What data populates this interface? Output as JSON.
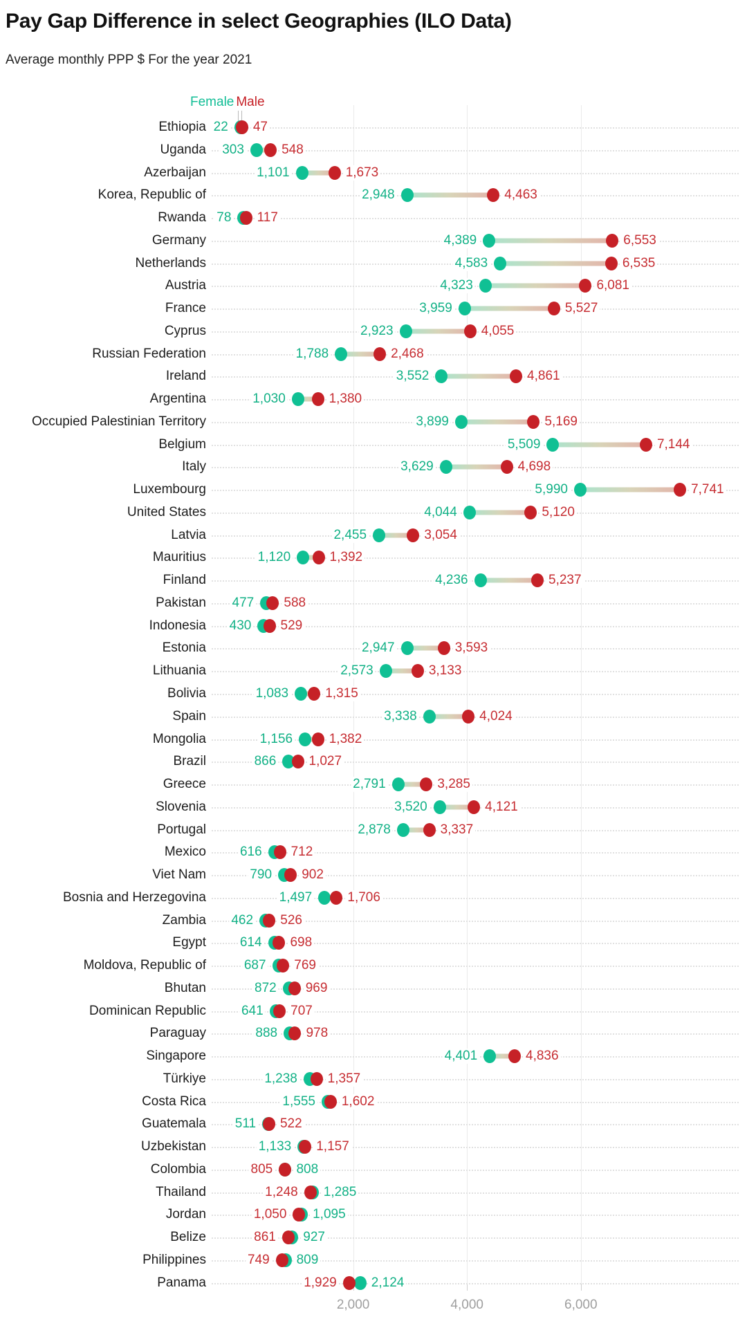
{
  "chart_data": {
    "type": "scatter",
    "variant": "dumbbell",
    "title": "Pay Gap Difference in select Geographies (ILO Data)",
    "subtitle": "Average monthly PPP $ For the year 2021",
    "legend": {
      "female_label": "Female",
      "male_label": "Male"
    },
    "colors": {
      "female": "#12be96",
      "male": "#c62127",
      "connector_female_end": "#aae4cd",
      "connector_male_end": "#e3b4aa",
      "gridline": "#ebebeb",
      "axis_text": "#9e9e9e"
    },
    "x_axis": {
      "ticks": [
        2000,
        4000,
        6000
      ],
      "tick_labels": [
        "2,000",
        "4,000",
        "6,000"
      ],
      "range": [
        0,
        8800
      ],
      "grid": true
    },
    "legend_position": "top-left-of-first-row",
    "rows": [
      {
        "country": "Ethiopia",
        "female": 22,
        "male": 47
      },
      {
        "country": "Uganda",
        "female": 303,
        "male": 548
      },
      {
        "country": "Azerbaijan",
        "female": 1101,
        "male": 1673
      },
      {
        "country": "Korea, Republic of",
        "female": 2948,
        "male": 4463
      },
      {
        "country": "Rwanda",
        "female": 78,
        "male": 117
      },
      {
        "country": "Germany",
        "female": 4389,
        "male": 6553
      },
      {
        "country": "Netherlands",
        "female": 4583,
        "male": 6535
      },
      {
        "country": "Austria",
        "female": 4323,
        "male": 6081
      },
      {
        "country": "France",
        "female": 3959,
        "male": 5527
      },
      {
        "country": "Cyprus",
        "female": 2923,
        "male": 4055
      },
      {
        "country": "Russian Federation",
        "female": 1788,
        "male": 2468
      },
      {
        "country": "Ireland",
        "female": 3552,
        "male": 4861
      },
      {
        "country": "Argentina",
        "female": 1030,
        "male": 1380
      },
      {
        "country": "Occupied Palestinian Territory",
        "female": 3899,
        "male": 5169
      },
      {
        "country": "Belgium",
        "female": 5509,
        "male": 7144
      },
      {
        "country": "Italy",
        "female": 3629,
        "male": 4698
      },
      {
        "country": "Luxembourg",
        "female": 5990,
        "male": 7741
      },
      {
        "country": "United States",
        "female": 4044,
        "male": 5120
      },
      {
        "country": "Latvia",
        "female": 2455,
        "male": 3054
      },
      {
        "country": "Mauritius",
        "female": 1120,
        "male": 1392
      },
      {
        "country": "Finland",
        "female": 4236,
        "male": 5237
      },
      {
        "country": "Pakistan",
        "female": 477,
        "male": 588
      },
      {
        "country": "Indonesia",
        "female": 430,
        "male": 529
      },
      {
        "country": "Estonia",
        "female": 2947,
        "male": 3593
      },
      {
        "country": "Lithuania",
        "female": 2573,
        "male": 3133
      },
      {
        "country": "Bolivia",
        "female": 1083,
        "male": 1315
      },
      {
        "country": "Spain",
        "female": 3338,
        "male": 4024
      },
      {
        "country": "Mongolia",
        "female": 1156,
        "male": 1382
      },
      {
        "country": "Brazil",
        "female": 866,
        "male": 1027
      },
      {
        "country": "Greece",
        "female": 2791,
        "male": 3285
      },
      {
        "country": "Slovenia",
        "female": 3520,
        "male": 4121
      },
      {
        "country": "Portugal",
        "female": 2878,
        "male": 3337
      },
      {
        "country": "Mexico",
        "female": 616,
        "male": 712
      },
      {
        "country": "Viet Nam",
        "female": 790,
        "male": 902
      },
      {
        "country": "Bosnia and Herzegovina",
        "female": 1497,
        "male": 1706
      },
      {
        "country": "Zambia",
        "female": 462,
        "male": 526
      },
      {
        "country": "Egypt",
        "female": 614,
        "male": 698
      },
      {
        "country": "Moldova, Republic of",
        "female": 687,
        "male": 769
      },
      {
        "country": "Bhutan",
        "female": 872,
        "male": 969
      },
      {
        "country": "Dominican Republic",
        "female": 641,
        "male": 707
      },
      {
        "country": "Paraguay",
        "female": 888,
        "male": 978
      },
      {
        "country": "Singapore",
        "female": 4401,
        "male": 4836
      },
      {
        "country": "Türkiye",
        "female": 1238,
        "male": 1357
      },
      {
        "country": "Costa Rica",
        "female": 1555,
        "male": 1602
      },
      {
        "country": "Guatemala",
        "female": 511,
        "male": 522
      },
      {
        "country": "Uzbekistan",
        "female": 1133,
        "male": 1157
      },
      {
        "country": "Colombia",
        "female": 808,
        "male": 805
      },
      {
        "country": "Thailand",
        "female": 1285,
        "male": 1248
      },
      {
        "country": "Jordan",
        "female": 1095,
        "male": 1050
      },
      {
        "country": "Belize",
        "female": 927,
        "male": 861
      },
      {
        "country": "Philippines",
        "female": 809,
        "male": 749
      },
      {
        "country": "Panama",
        "female": 2124,
        "male": 1929
      }
    ]
  }
}
